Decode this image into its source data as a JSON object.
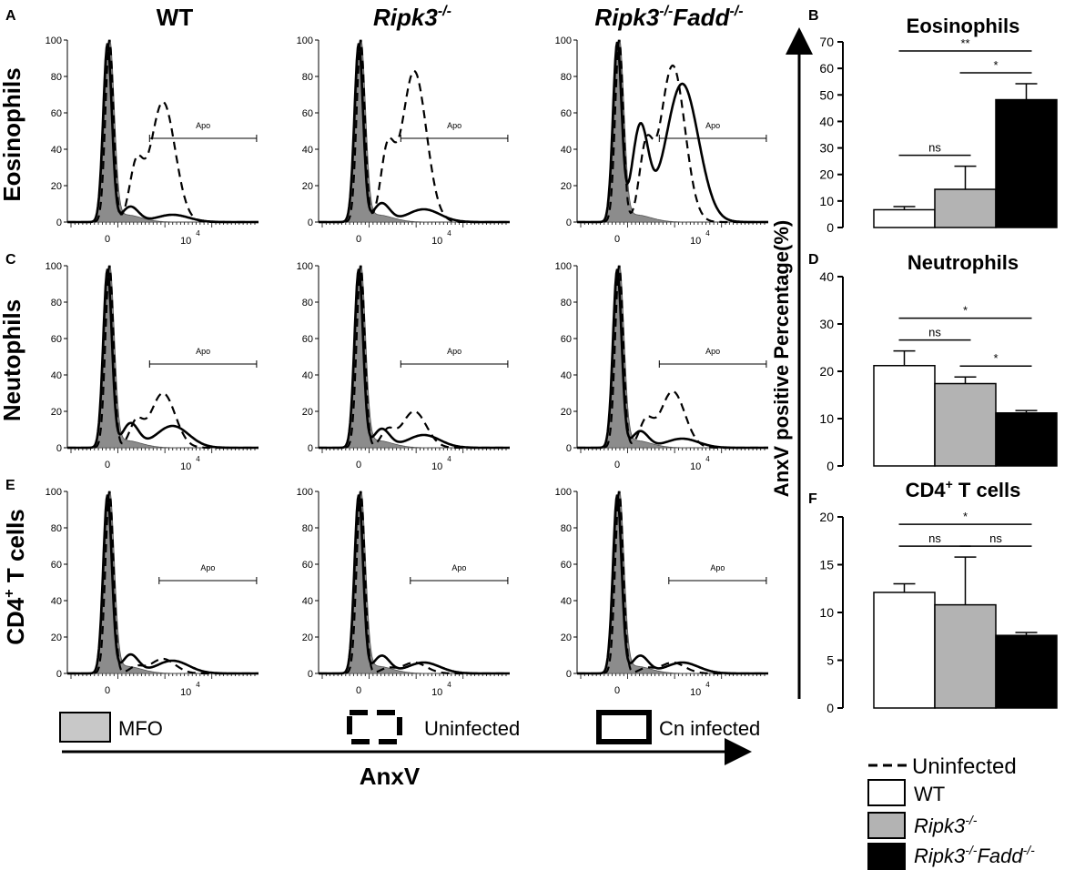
{
  "figure": {
    "panel_letters": [
      "A",
      "B",
      "C",
      "D",
      "E",
      "F"
    ],
    "column_titles": [
      {
        "base": "WT",
        "sup": ""
      },
      {
        "base": "Ripk3",
        "sup": "-/-"
      },
      {
        "base": "Ripk3",
        "sup": "-/-",
        "base2": "Fadd",
        "sup2": "-/-"
      }
    ],
    "row_titles": [
      {
        "base": "Eosinophils",
        "sup": "",
        "rest": ""
      },
      {
        "base": "Neutophils",
        "sup": "",
        "rest": ""
      },
      {
        "base": "CD4",
        "sup": "+",
        "rest": " T cells"
      }
    ],
    "x_axis_label": "AnxV",
    "y_axis_label": "AnxV positive Percentage(%)",
    "histogram_legend": {
      "mfo": "MFO",
      "uninfected": "Uninfected",
      "infected": "Cn infected"
    },
    "bar_legend": {
      "uninfected": "Uninfected",
      "wt": "WT",
      "ripk3": {
        "base": "Ripk3",
        "sup": "-/-"
      },
      "dko": {
        "base": "Ripk3",
        "sup": "-/-",
        "base2": "Fadd",
        "sup2": "-/-"
      }
    }
  },
  "chart_data": [
    {
      "type": "area",
      "id": "histograms",
      "description": "Flow cytometry AnxV histograms (3 rows x 3 columns)",
      "rows": [
        "Eosinophils",
        "Neutophils",
        "CD4+ T cells"
      ],
      "columns": [
        "WT",
        "Ripk3-/-",
        "Ripk3-/-Fadd-/-"
      ],
      "series": [
        "MFO",
        "Uninfected",
        "Cn infected"
      ],
      "y_ticks": [
        "0",
        "20",
        "40",
        "60",
        "80",
        "100"
      ],
      "x_tick_labels": [
        "0",
        "10",
        "4"
      ],
      "ylim": [
        0,
        100
      ],
      "gate_label": "Apo",
      "uninfected_peak_height": [
        [
          66,
          83,
          86
        ],
        [
          30,
          20,
          31
        ],
        [
          8,
          6,
          6
        ]
      ],
      "infected_peak_height": [
        [
          4,
          7,
          76
        ],
        [
          12,
          7,
          5
        ],
        [
          7,
          6,
          6
        ]
      ]
    },
    {
      "type": "bar",
      "panel": "B",
      "title": "Eosinophils",
      "categories": [
        "WT",
        "Ripk3-/-",
        "Ripk3-/-Fadd-/-"
      ],
      "values": [
        6.7,
        14.4,
        48.2
      ],
      "errors": [
        1.2,
        8.7,
        6.0
      ],
      "ylim": [
        0,
        70
      ],
      "yticks": [
        0,
        10,
        20,
        30,
        40,
        50,
        60,
        70
      ],
      "significance": [
        {
          "from": 0,
          "to": 1,
          "label": "ns"
        },
        {
          "from": 1,
          "to": 2,
          "label": "*"
        },
        {
          "from": 0,
          "to": 2,
          "label": "**"
        }
      ]
    },
    {
      "type": "bar",
      "panel": "D",
      "title": "Neutrophils",
      "categories": [
        "WT",
        "Ripk3-/-",
        "Ripk3-/-Fadd-/-"
      ],
      "values": [
        21.2,
        17.4,
        11.2
      ],
      "errors": [
        3.1,
        1.4,
        0.5
      ],
      "ylim": [
        0,
        40
      ],
      "yticks": [
        0,
        10,
        20,
        30,
        40
      ],
      "significance": [
        {
          "from": 0,
          "to": 1,
          "label": "ns"
        },
        {
          "from": 1,
          "to": 2,
          "label": "*"
        },
        {
          "from": 0,
          "to": 2,
          "label": "*"
        }
      ]
    },
    {
      "type": "bar",
      "panel": "F",
      "title": "CD4+ T cells",
      "title_base": "CD4",
      "title_sup": "+",
      "title_rest": " T cells",
      "categories": [
        "WT",
        "Ripk3-/-",
        "Ripk3-/-Fadd-/-"
      ],
      "values": [
        12.1,
        10.8,
        7.6
      ],
      "errors": [
        0.9,
        5.0,
        0.3
      ],
      "ylim": [
        0,
        20
      ],
      "yticks": [
        0,
        5,
        10,
        15,
        20
      ],
      "significance": [
        {
          "from": 0,
          "to": 1,
          "label": "ns"
        },
        {
          "from": 1,
          "to": 2,
          "label": "ns"
        },
        {
          "from": 0,
          "to": 2,
          "label": "*"
        }
      ]
    }
  ],
  "colors": {
    "wt": "#ffffff",
    "ripk3": "#b3b3b3",
    "dko": "#000000",
    "mfo": "#8c8c8c",
    "axis": "#000000"
  }
}
